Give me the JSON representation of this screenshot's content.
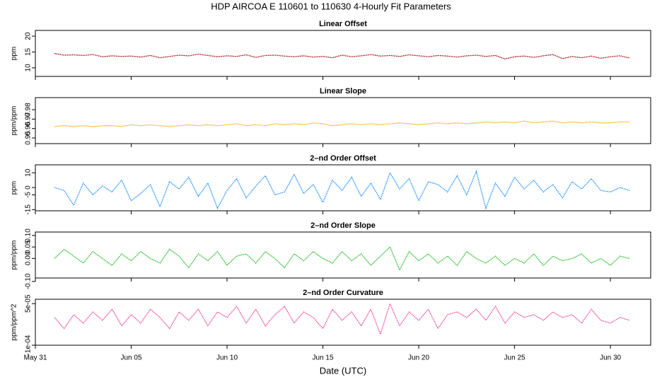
{
  "title": "HDP   AIRCOA E   110601 to 110630   4-Hourly Fit Parameters",
  "chart_data": [
    {
      "type": "line",
      "title": "Linear Offset",
      "ylabel": "ppm",
      "x": [
        1,
        1.5,
        2,
        2.5,
        3,
        3.5,
        4,
        4.5,
        5,
        5.5,
        6,
        6.5,
        7,
        7.5,
        8,
        8.5,
        9,
        9.5,
        10,
        10.5,
        11,
        11.5,
        12,
        12.5,
        13,
        13.5,
        14,
        14.5,
        15,
        15.5,
        16,
        16.5,
        17,
        17.5,
        18,
        18.5,
        19,
        19.5,
        20,
        20.5,
        21,
        21.5,
        22,
        22.5,
        23,
        23.5,
        24,
        24.5,
        25,
        25.5,
        26,
        26.5,
        27,
        27.5,
        28,
        28.5,
        29,
        29.5,
        30,
        30.5,
        31
      ],
      "series": [
        {
          "color": "#a00000",
          "values": [
            14.5,
            14.0,
            14.1,
            13.9,
            14.2,
            13.5,
            13.8,
            13.6,
            13.7,
            13.4,
            13.9,
            13.2,
            13.6,
            14.0,
            13.8,
            14.3,
            13.9,
            13.5,
            13.8,
            13.6,
            14.1,
            13.3,
            13.9,
            14.0,
            13.7,
            13.5,
            13.8,
            13.4,
            13.6,
            13.2,
            14.0,
            13.5,
            13.8,
            14.2,
            13.7,
            13.9,
            13.6,
            14.1,
            13.8,
            13.5,
            13.9,
            13.7,
            13.4,
            13.8,
            14.0,
            13.6,
            13.9,
            12.8,
            13.5,
            13.7,
            13.3,
            13.8,
            14.2,
            12.9,
            13.6,
            13.2,
            13.7,
            13.0,
            13.5,
            13.8,
            13.1
          ]
        }
      ],
      "xlim": [
        0,
        32.1
      ],
      "xticks": [
        0,
        5,
        10,
        15,
        20,
        25,
        30
      ],
      "ylim": [
        7.3,
        21.8
      ],
      "yticks": [
        10,
        15,
        20
      ]
    },
    {
      "type": "line",
      "title": "Linear Slope",
      "ylabel": "ppm/ppm",
      "x": [
        1,
        1.5,
        2,
        2.5,
        3,
        3.5,
        4,
        4.5,
        5,
        5.5,
        6,
        6.5,
        7,
        7.5,
        8,
        8.5,
        9,
        9.5,
        10,
        10.5,
        11,
        11.5,
        12,
        12.5,
        13,
        13.5,
        14,
        14.5,
        15,
        15.5,
        16,
        16.5,
        17,
        17.5,
        18,
        18.5,
        19,
        19.5,
        20,
        20.5,
        21,
        21.5,
        22,
        22.5,
        23,
        23.5,
        24,
        24.5,
        25,
        25.5,
        26,
        26.5,
        27,
        27.5,
        28,
        28.5,
        29,
        29.5,
        30,
        30.5,
        31
      ],
      "series": [
        {
          "color": "#ffa500",
          "values": [
            0.962,
            0.963,
            0.962,
            0.963,
            0.962,
            0.963,
            0.963,
            0.962,
            0.964,
            0.963,
            0.964,
            0.963,
            0.962,
            0.963,
            0.964,
            0.963,
            0.964,
            0.963,
            0.964,
            0.965,
            0.963,
            0.964,
            0.963,
            0.965,
            0.964,
            0.965,
            0.964,
            0.966,
            0.965,
            0.963,
            0.964,
            0.965,
            0.964,
            0.965,
            0.964,
            0.965,
            0.966,
            0.965,
            0.964,
            0.965,
            0.966,
            0.965,
            0.966,
            0.965,
            0.966,
            0.967,
            0.966,
            0.967,
            0.966,
            0.968,
            0.966,
            0.967,
            0.968,
            0.966,
            0.967,
            0.966,
            0.967,
            0.966,
            0.966,
            0.967,
            0.967
          ]
        }
      ],
      "xlim": [
        0,
        32.1
      ],
      "xticks": [
        0,
        5,
        10,
        15,
        20,
        25,
        30
      ],
      "ylim": [
        0.944,
        0.9928
      ],
      "yticks": [
        0.95,
        0.96,
        0.97,
        0.98
      ]
    },
    {
      "type": "line",
      "title": "2–nd Order Offset",
      "ylabel": "ppm",
      "x": [
        1,
        1.5,
        2,
        2.5,
        3,
        3.5,
        4,
        4.5,
        5,
        5.5,
        6,
        6.5,
        7,
        7.5,
        8,
        8.5,
        9,
        9.5,
        10,
        10.5,
        11,
        11.5,
        12,
        12.5,
        13,
        13.5,
        14,
        14.5,
        15,
        15.5,
        16,
        16.5,
        17,
        17.5,
        18,
        18.5,
        19,
        19.5,
        20,
        20.5,
        21,
        21.5,
        22,
        22.5,
        23,
        23.5,
        24,
        24.5,
        25,
        25.5,
        26,
        26.5,
        27,
        27.5,
        28,
        28.5,
        29,
        29.5,
        30,
        30.5,
        31
      ],
      "series": [
        {
          "color": "#1e90ff",
          "values": [
            0,
            -2,
            -12,
            3,
            -5,
            1,
            -3,
            5,
            -9,
            -4,
            2,
            -13,
            4,
            -1,
            7,
            -6,
            3,
            -14,
            -2,
            6,
            -7,
            1,
            8,
            -5,
            -3,
            9,
            -4,
            2,
            -10,
            5,
            -2,
            7,
            -6,
            3,
            -8,
            10,
            -1,
            6,
            -9,
            4,
            2,
            -3,
            8,
            -5,
            11,
            -14,
            3,
            -6,
            7,
            -1,
            5,
            -3,
            2,
            -7,
            4,
            -1,
            6,
            -2,
            -3,
            0,
            -2
          ]
        }
      ],
      "xlim": [
        0,
        32.1
      ],
      "xticks": [
        0,
        5,
        10,
        15,
        20,
        25,
        30
      ],
      "ylim": [
        -15.8,
        15.4
      ],
      "yticks": [
        -15,
        -5,
        0,
        10
      ]
    },
    {
      "type": "line",
      "title": "2–nd Order Slope",
      "ylabel": "ppm/ppm",
      "x": [
        1,
        1.5,
        2,
        2.5,
        3,
        3.5,
        4,
        4.5,
        5,
        5.5,
        6,
        6.5,
        7,
        7.5,
        8,
        8.5,
        9,
        9.5,
        10,
        10.5,
        11,
        11.5,
        12,
        12.5,
        13,
        13.5,
        14,
        14.5,
        15,
        15.5,
        16,
        16.5,
        17,
        17.5,
        18,
        18.5,
        19,
        19.5,
        20,
        20.5,
        21,
        21.5,
        22,
        22.5,
        23,
        23.5,
        24,
        24.5,
        25,
        25.5,
        26,
        26.5,
        27,
        27.5,
        28,
        28.5,
        29,
        29.5,
        30,
        30.5,
        31
      ],
      "series": [
        {
          "color": "#22bb22",
          "values": [
            0.0,
            0.04,
            0.01,
            -0.02,
            0.03,
            0.0,
            -0.03,
            0.02,
            -0.01,
            0.03,
            0.0,
            -0.02,
            0.04,
            0.01,
            -0.04,
            0.02,
            -0.01,
            0.03,
            -0.03,
            0.01,
            0.02,
            -0.02,
            0.03,
            0.0,
            -0.04,
            0.02,
            -0.01,
            0.03,
            0.0,
            -0.02,
            0.03,
            -0.01,
            0.02,
            -0.03,
            0.01,
            0.05,
            -0.05,
            0.03,
            -0.01,
            0.02,
            -0.02,
            0.01,
            -0.03,
            0.03,
            0.0,
            -0.02,
            0.01,
            -0.03,
            0.0,
            -0.02,
            0.02,
            -0.03,
            0.01,
            -0.01,
            0.0,
            0.02,
            -0.02,
            0.0,
            -0.03,
            0.01,
            0.0
          ]
        }
      ],
      "xlim": [
        0,
        32.1
      ],
      "xticks": [
        0,
        5,
        10,
        15,
        20,
        25,
        30
      ],
      "ylim": [
        -0.085,
        0.115
      ],
      "yticks": [
        {
          "value": -0.1,
          "label": "-0.10"
        },
        {
          "value": 0,
          "label": "0.00"
        },
        {
          "value": 0.05,
          "label": "0.05"
        },
        {
          "value": 0.1,
          "label": "0.10"
        }
      ]
    },
    {
      "type": "line",
      "title": "2–nd Order Curvature",
      "ylabel": "ppm/ppm^2",
      "xlabel": "Date (UTC)",
      "x": [
        1,
        1.5,
        2,
        2.5,
        3,
        3.5,
        4,
        4.5,
        5,
        5.5,
        6,
        6.5,
        7,
        7.5,
        8,
        8.5,
        9,
        9.5,
        10,
        10.5,
        11,
        11.5,
        12,
        12.5,
        13,
        13.5,
        14,
        14.5,
        15,
        15.5,
        16,
        16.5,
        17,
        17.5,
        18,
        18.5,
        19,
        19.5,
        20,
        20.5,
        21,
        21.5,
        22,
        22.5,
        23,
        23.5,
        24,
        24.5,
        25,
        25.5,
        26,
        26.5,
        27,
        27.5,
        28,
        28.5,
        29,
        29.5,
        30,
        30.5,
        31
      ],
      "series": [
        {
          "color": "#ee4499",
          "values": [
            0,
            -4e-05,
            1e-05,
            -2e-05,
            2e-05,
            -1e-05,
            3e-05,
            -3e-05,
            1e-05,
            -2e-05,
            3e-05,
            0,
            -4e-05,
            2e-05,
            -1e-05,
            3e-05,
            -3e-05,
            2e-05,
            0,
            4e-05,
            -2e-05,
            3e-05,
            -3e-05,
            1e-05,
            4e-05,
            -2e-05,
            2e-05,
            0,
            -4e-05,
            3e-05,
            -1e-05,
            2e-05,
            -3e-05,
            3e-05,
            -6e-05,
            5e-05,
            -3e-05,
            2e-05,
            -1e-05,
            3e-05,
            -4e-05,
            1e-05,
            2e-05,
            0,
            3e-05,
            -1e-05,
            4e-05,
            -2e-05,
            2e-05,
            0,
            1e-05,
            -1e-05,
            2e-05,
            0,
            1e-05,
            -2e-05,
            3e-05,
            -1e-05,
            -2e-05,
            0,
            -1e-05
          ]
        }
      ],
      "xlim": [
        0,
        32.1
      ],
      "xticks": [
        {
          "value": 0,
          "label": "May 31"
        },
        {
          "value": 5,
          "label": "Jun 05"
        },
        {
          "value": 10,
          "label": "Jun 10"
        },
        {
          "value": 15,
          "label": "Jun 15"
        },
        {
          "value": 20,
          "label": "Jun 20"
        },
        {
          "value": 25,
          "label": "Jun 25"
        },
        {
          "value": 30,
          "label": "Jun 30"
        }
      ],
      "ylim": [
        -0.0001,
        6.6e-05
      ],
      "yticks": [
        {
          "value": -0.0001,
          "label": "-1e-04"
        },
        {
          "value": 5e-05,
          "label": "5e-05"
        }
      ]
    }
  ]
}
